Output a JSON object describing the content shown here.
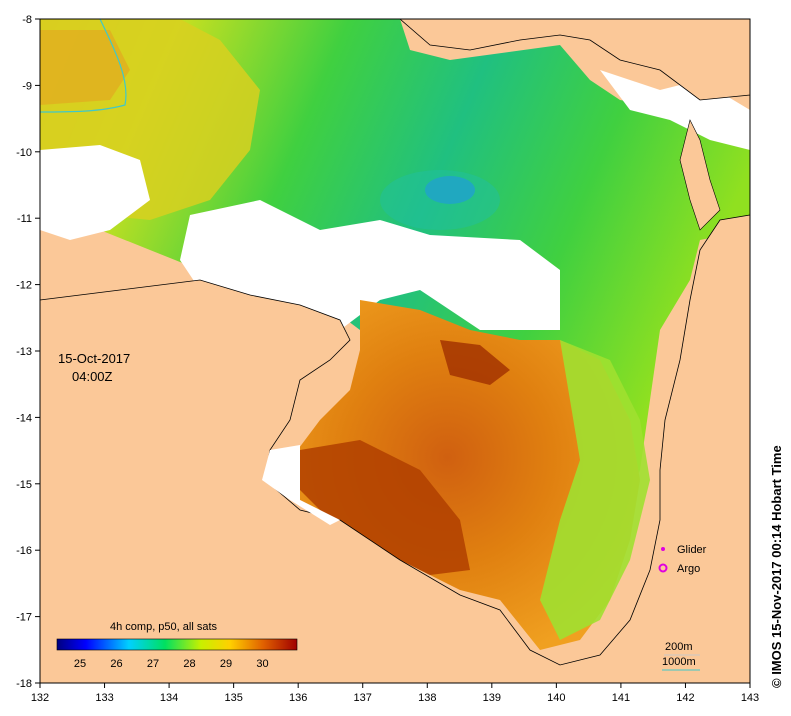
{
  "map": {
    "date": "15-Oct-2017",
    "time": "04:00Z",
    "credit": "© IMOS 15-Nov-2017 00:14 Hobart Time",
    "x_ticks": [
      "132",
      "133",
      "134",
      "135",
      "136",
      "137",
      "138",
      "139",
      "140",
      "141",
      "142",
      "143"
    ],
    "y_ticks": [
      "-8",
      "-9",
      "-10",
      "-11",
      "-12",
      "-13",
      "-14",
      "-15",
      "-16",
      "-17",
      "-18"
    ],
    "colorbar": {
      "title": "4h comp, p50, all sats",
      "labels": [
        "25",
        "26",
        "27",
        "28",
        "29",
        "30"
      ]
    },
    "legend": {
      "glider": "Glider",
      "argo": "Argo",
      "contour1": "200m",
      "contour2": "1000m"
    },
    "colors": {
      "land": "#fbc898",
      "nodata": "#ffffff",
      "glider": "#e000e0",
      "argo": "#e000e0",
      "contour": "#40c8c8"
    }
  }
}
